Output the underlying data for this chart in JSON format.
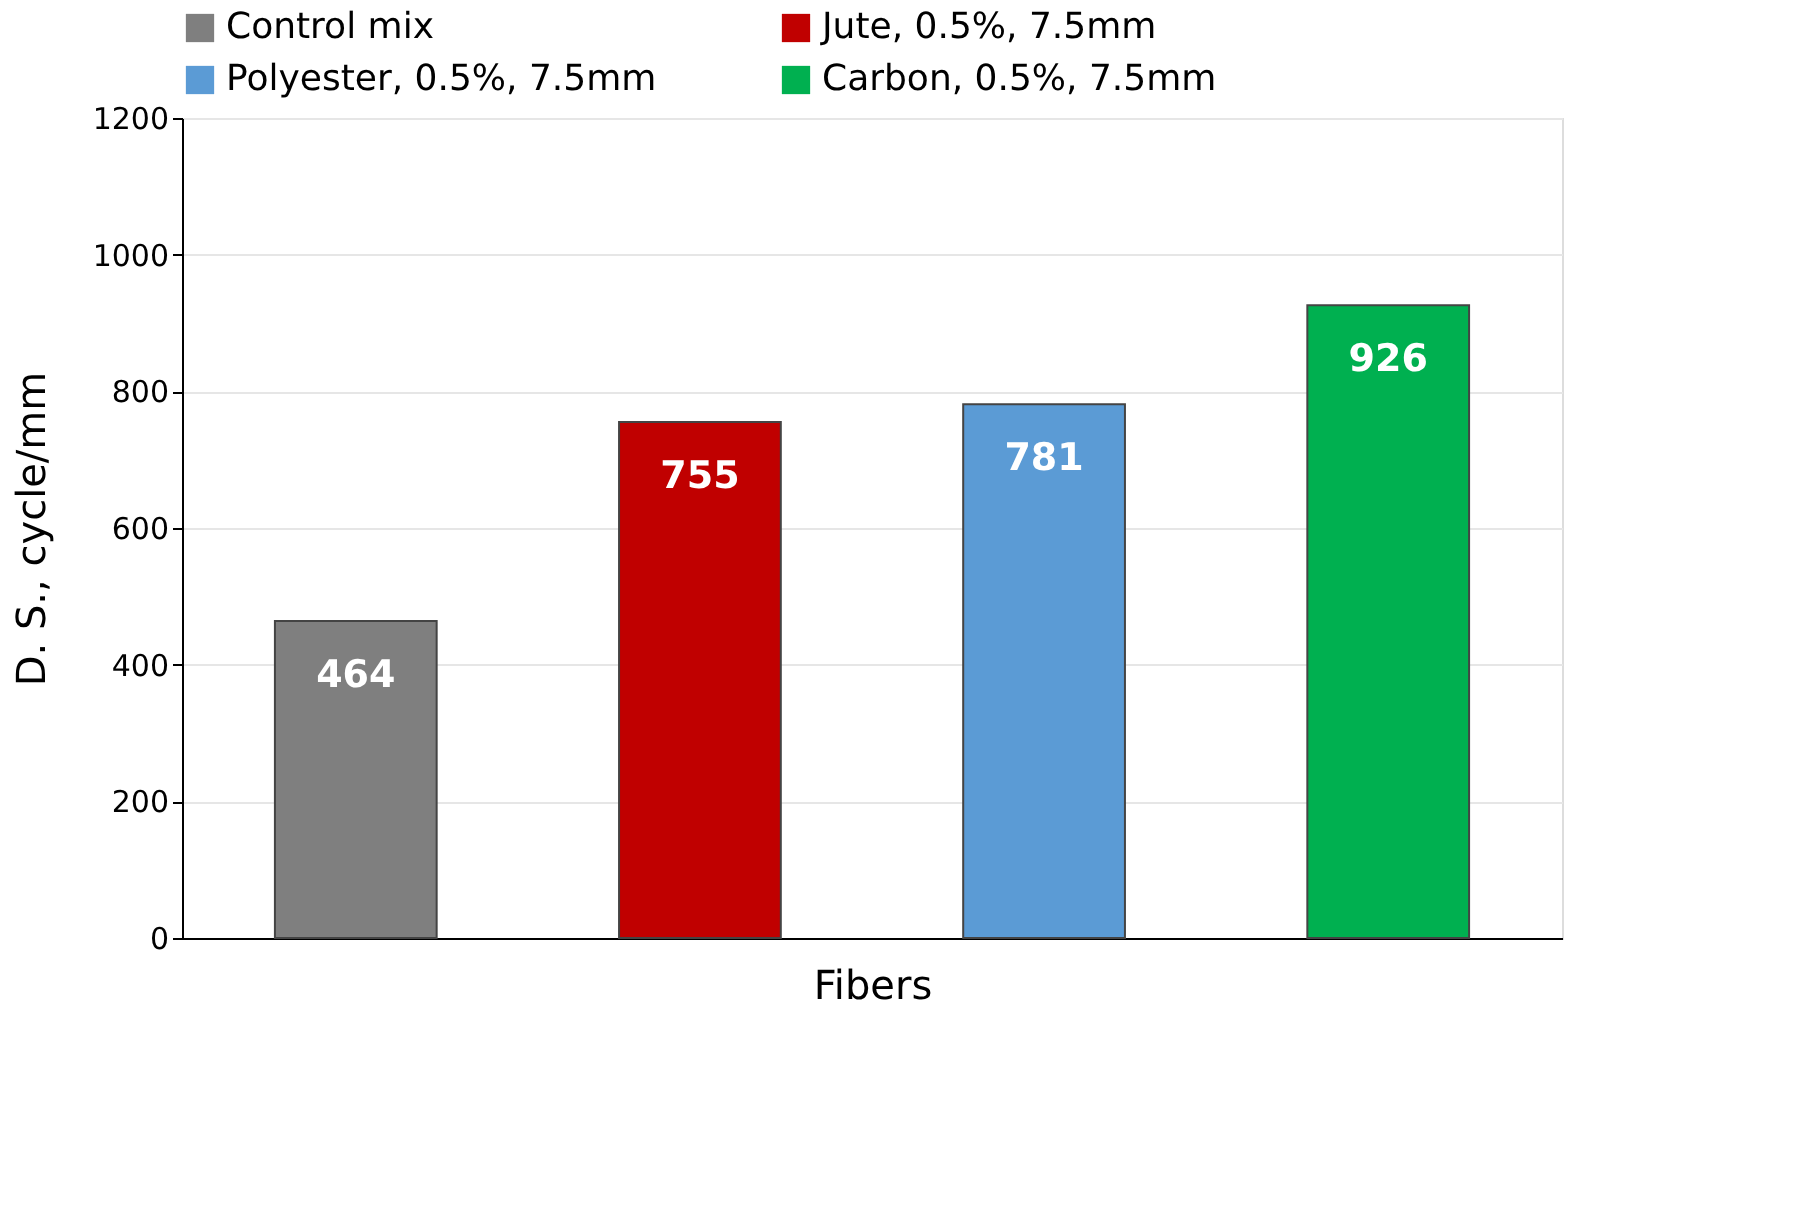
{
  "chart_data": {
    "type": "bar",
    "xlabel": "Fibers",
    "ylabel": "D. S., cycle/mm",
    "categories": [
      null,
      null,
      null,
      null
    ],
    "series": [
      {
        "name": "Control mix",
        "color": "#7f7f7f",
        "values": [
          464,
          null,
          null,
          null
        ]
      },
      {
        "name": "Jute, 0.5%, 7.5mm",
        "color": "#c00000",
        "values": [
          null,
          755,
          null,
          null
        ]
      },
      {
        "name": "Polyester, 0.5%, 7.5mm",
        "color": "#5b9bd5",
        "values": [
          null,
          null,
          781,
          null
        ]
      },
      {
        "name": "Carbon, 0.5%, 7.5mm",
        "color": "#00b050",
        "values": [
          null,
          null,
          null,
          926
        ]
      }
    ],
    "ylim": [
      0,
      1200
    ],
    "yticks": [
      0,
      200,
      400,
      600,
      800,
      1000,
      1200
    ],
    "grid": "y",
    "legend": "top",
    "data_labels": true
  }
}
